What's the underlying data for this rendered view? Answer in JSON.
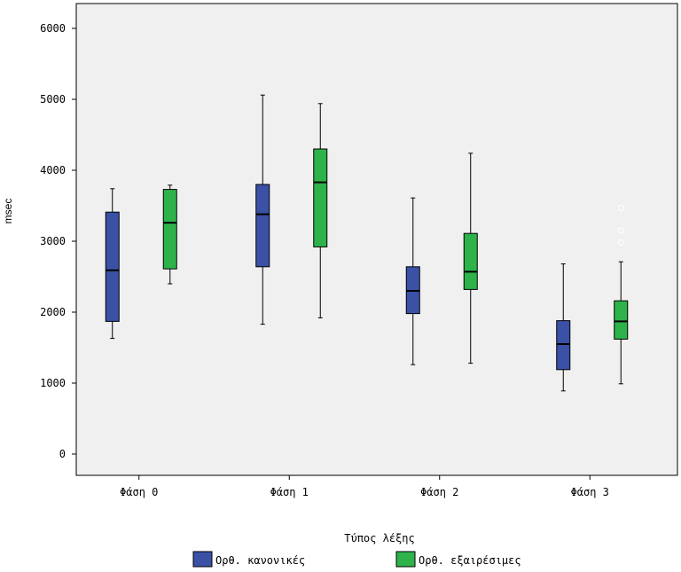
{
  "chart_data": {
    "type": "boxplot",
    "ylabel": "msec",
    "xlabel": "",
    "ylim": [
      -300,
      6350
    ],
    "yticks": [
      0,
      1000,
      2000,
      3000,
      4000,
      5000,
      6000
    ],
    "grid": false,
    "plot_background": "#f0f0f0",
    "categories": [
      "Φάση 0",
      "Φάση 1",
      "Φάση 2",
      "Φάση 3"
    ],
    "legend": {
      "title": "Τύπος λέξης",
      "placement": "bottom"
    },
    "series": [
      {
        "name": "Ορθ. κανονικές",
        "color": "#3a51a6",
        "boxes": [
          {
            "min": 1630,
            "q1": 1870,
            "median": 2590,
            "q3": 3410,
            "max": 3740,
            "outliers": []
          },
          {
            "min": 1830,
            "q1": 2640,
            "median": 3380,
            "q3": 3800,
            "max": 5060,
            "outliers": []
          },
          {
            "min": 1260,
            "q1": 1980,
            "median": 2300,
            "q3": 2640,
            "max": 3610,
            "outliers": []
          },
          {
            "min": 890,
            "q1": 1190,
            "median": 1550,
            "q3": 1880,
            "max": 2680,
            "outliers": []
          }
        ]
      },
      {
        "name": "Ορθ. εξαιρέσιμες",
        "color": "#2db34a",
        "boxes": [
          {
            "min": 2400,
            "q1": 2610,
            "median": 3260,
            "q3": 3730,
            "max": 3790,
            "outliers": []
          },
          {
            "min": 1920,
            "q1": 2920,
            "median": 3830,
            "q3": 4300,
            "max": 4940,
            "outliers": []
          },
          {
            "min": 1280,
            "q1": 2320,
            "median": 2570,
            "q3": 3110,
            "max": 4240,
            "outliers": []
          },
          {
            "min": 990,
            "q1": 1620,
            "median": 1870,
            "q3": 2160,
            "max": 2710,
            "outliers": [
              2980,
              3150,
              3470
            ]
          }
        ]
      }
    ]
  }
}
